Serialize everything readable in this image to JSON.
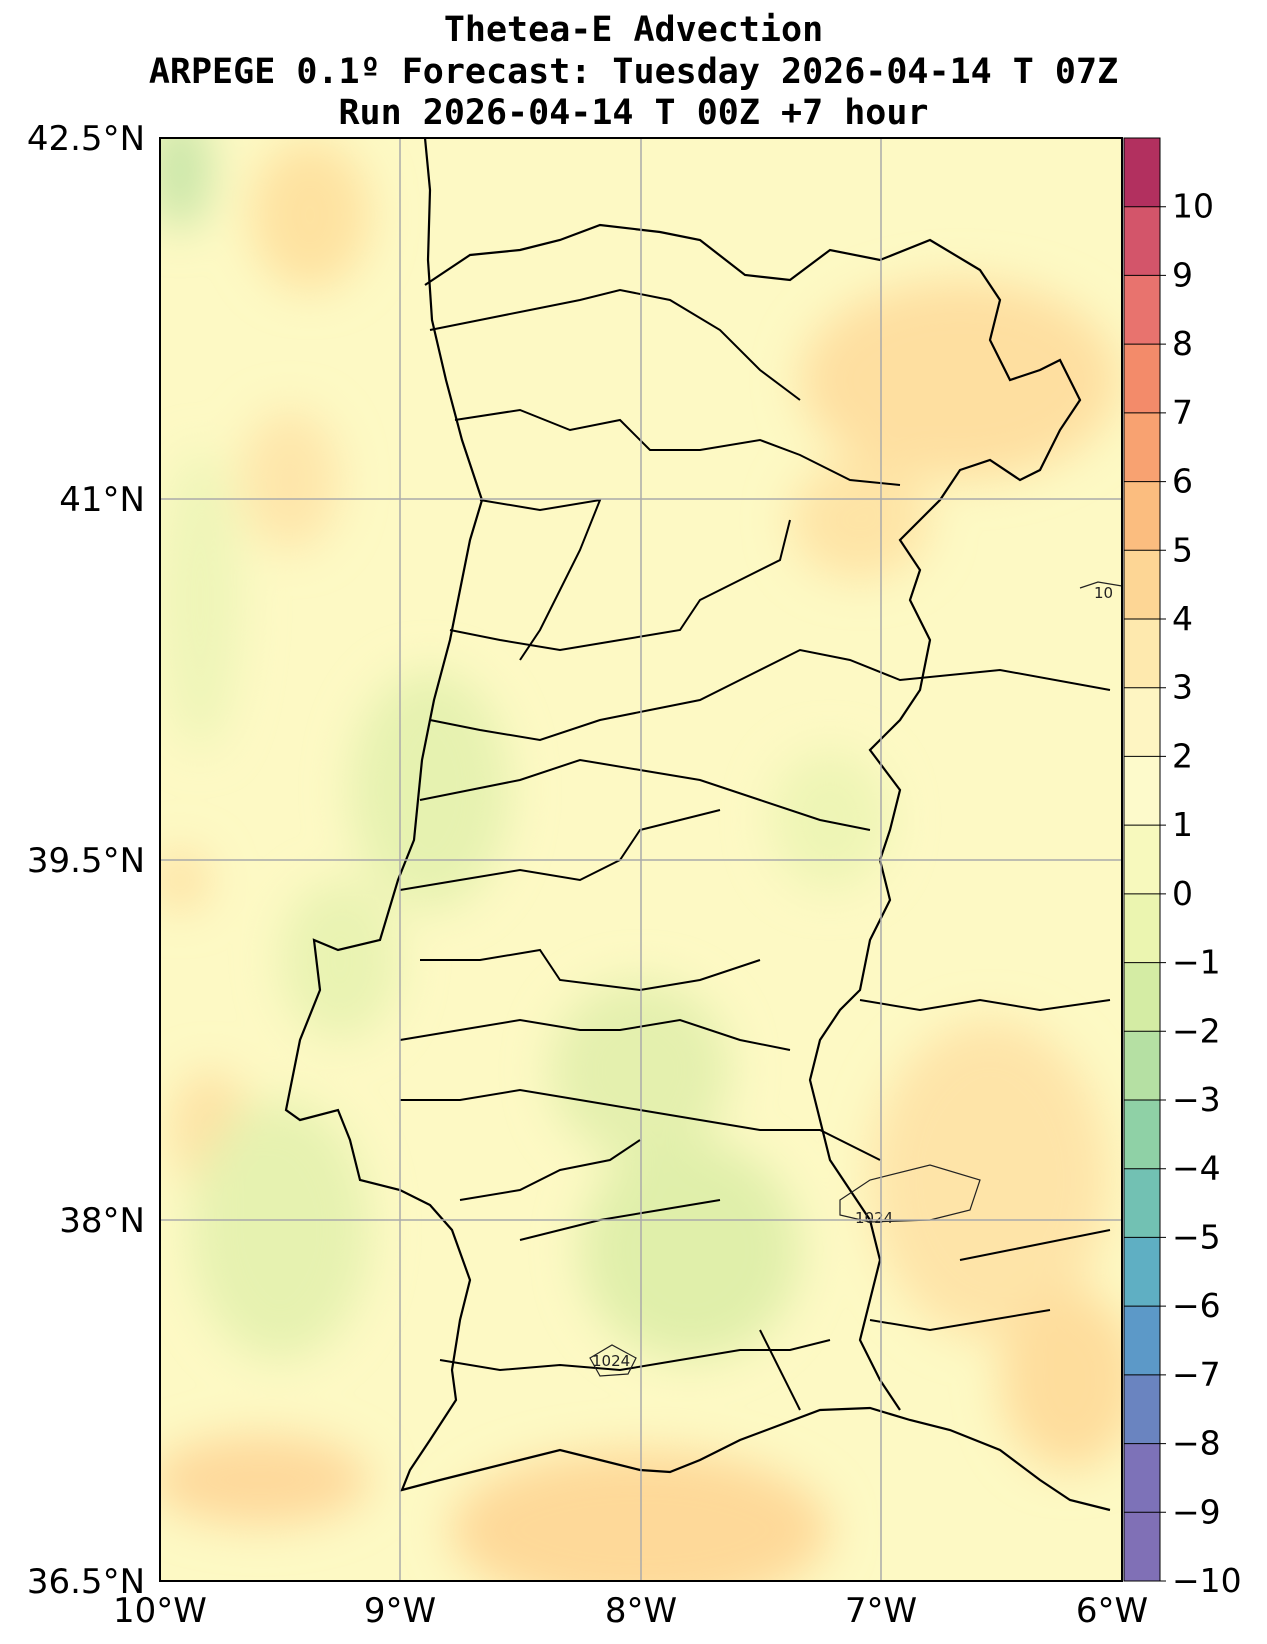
{
  "title": {
    "line1": "Thetea-E Advection",
    "line2": "ARPEGE 0.1º Forecast: Tuesday 2026-04-14 T 07Z",
    "line3": "Run 2026-04-14 T 00Z +7 hour"
  },
  "map": {
    "lat_labels": [
      "42.5°N",
      "41°N",
      "39.5°N",
      "38°N",
      "36.5°N"
    ],
    "lon_labels": [
      "10°W",
      "9°W",
      "8°W",
      "7°W",
      "6°W"
    ],
    "extent": {
      "lon_min": -10,
      "lon_max": -6,
      "lat_min": 36.5,
      "lat_max": 42.5
    },
    "isobar_labels": [
      "1024",
      "1024",
      "10"
    ]
  },
  "colorbar": {
    "ticks": [
      "10",
      "9",
      "8",
      "7",
      "6",
      "5",
      "4",
      "3",
      "2",
      "1",
      "0",
      "−1",
      "−2",
      "−3",
      "−4",
      "−5",
      "−6",
      "−7",
      "−8",
      "−9",
      "−10"
    ],
    "colors": [
      "#b2305f",
      "#d3556a",
      "#e8736e",
      "#f38b6a",
      "#f8a271",
      "#fbbd7f",
      "#fdd695",
      "#fee9ae",
      "#fef5c2",
      "#fdfacb",
      "#f7f9bd",
      "#ebf5b0",
      "#d4eca4",
      "#b5e0a3",
      "#8fd1a6",
      "#72c1b3",
      "#5fafc3",
      "#5c99c8",
      "#6a84c0",
      "#7d72b8",
      "#8070b6"
    ]
  }
}
